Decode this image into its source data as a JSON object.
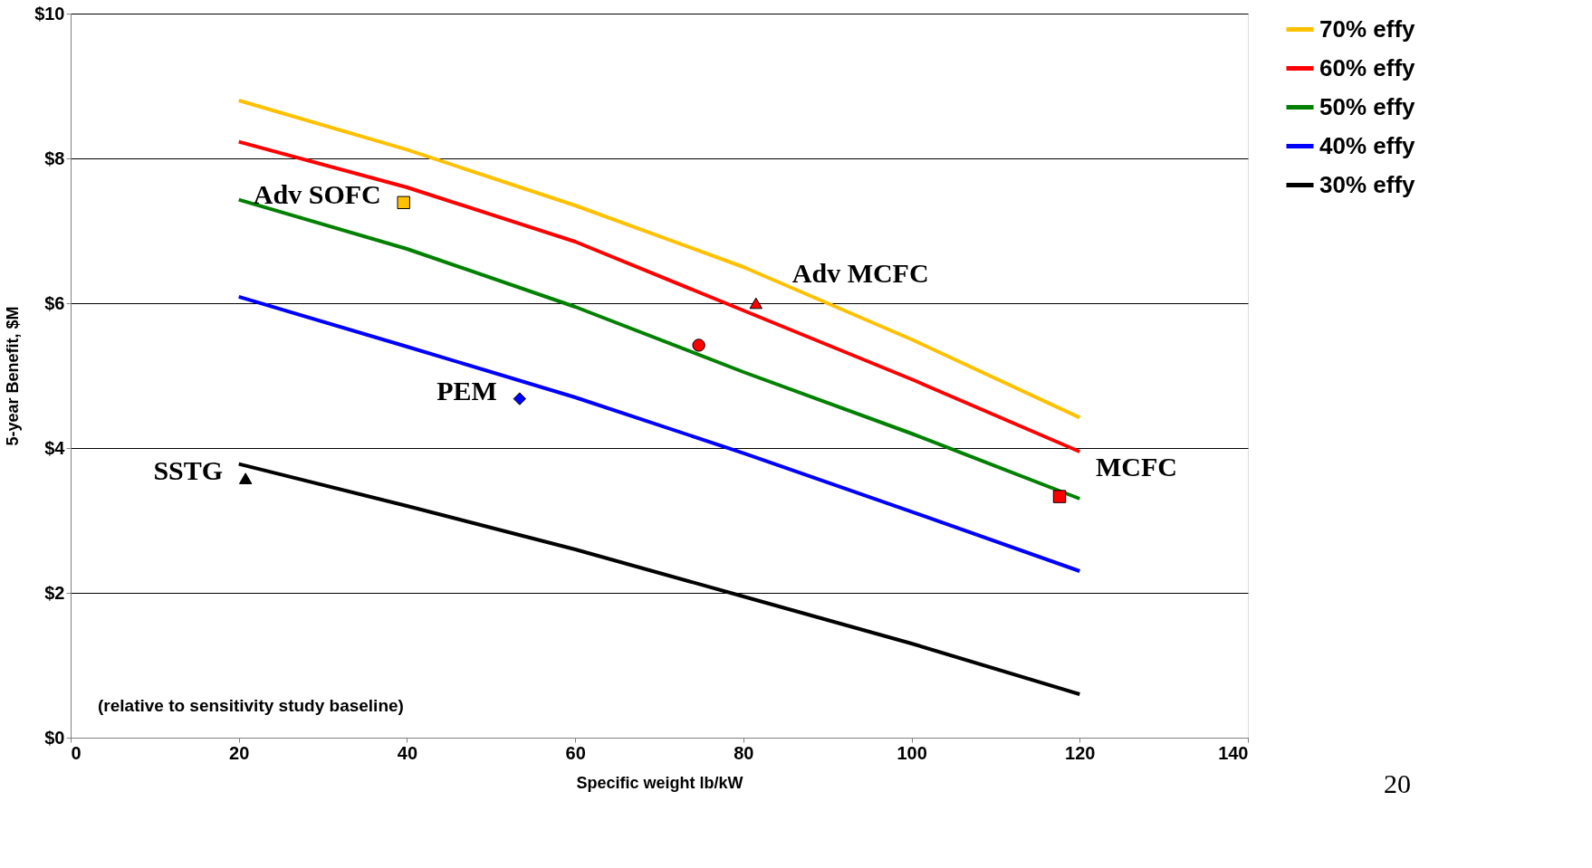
{
  "chart_data": {
    "type": "line",
    "xlabel": "Specific weight lb/kW",
    "ylabel": "5-year Benefit, $M",
    "x": [
      20,
      40,
      60,
      80,
      100,
      120
    ],
    "series": [
      {
        "name": "70% effy",
        "color": "#ffc000",
        "values": [
          8.8,
          8.12,
          7.35,
          6.5,
          5.5,
          4.42
        ]
      },
      {
        "name": "60% effy",
        "color": "#ff0000",
        "values": [
          8.23,
          7.6,
          6.85,
          5.9,
          4.95,
          3.95
        ]
      },
      {
        "name": "50% effy",
        "color": "#008000",
        "values": [
          7.43,
          6.75,
          5.95,
          5.05,
          4.2,
          3.3
        ]
      },
      {
        "name": "40% effy",
        "color": "#0000ff",
        "values": [
          6.09,
          5.4,
          4.7,
          3.93,
          3.12,
          2.3
        ]
      },
      {
        "name": "30% effy",
        "color": "#000000",
        "values": [
          3.78,
          3.2,
          2.6,
          1.95,
          1.3,
          0.6
        ]
      },
      {
        "type": "scatter",
        "marker": "square",
        "x": [
          39.6,
          117.6
        ],
        "values": [
          7.39,
          3.33
        ],
        "colors": [
          "#ffc000",
          "#ff0000"
        ]
      },
      {
        "type": "scatter",
        "marker": "triangle",
        "x": [
          81.5,
          20.8
        ],
        "values": [
          6.0,
          3.58
        ],
        "colors": [
          "#ff0000",
          "#000000"
        ]
      },
      {
        "type": "scatter",
        "marker": "circle",
        "x": [
          74.7
        ],
        "values": [
          5.42
        ],
        "colors": [
          "#ff0000"
        ]
      },
      {
        "type": "scatter",
        "marker": "diamond",
        "x": [
          53.4
        ],
        "values": [
          4.68
        ],
        "colors": [
          "#0000ff"
        ]
      }
    ],
    "xlim": [
      0,
      140
    ],
    "xticks": [
      0,
      20,
      40,
      60,
      80,
      100,
      120,
      140
    ],
    "ylim": [
      0,
      10
    ],
    "yticks": [
      {
        "value": 0,
        "label": "$0"
      },
      {
        "value": 2,
        "label": "$2"
      },
      {
        "value": 4,
        "label": "$4"
      },
      {
        "value": 6,
        "label": "$6"
      },
      {
        "value": 8,
        "label": "$8"
      },
      {
        "value": 10,
        "label": "$10"
      }
    ],
    "grid": "y",
    "legend": "right",
    "marker": "none",
    "line_style": "solid",
    "annotations": [
      {
        "text": "Adv SOFC",
        "x": 39.6,
        "y": 7.39
      },
      {
        "text": "Adv MCFC",
        "x": 81.5,
        "y": 6.0
      },
      {
        "text": "PEM",
        "x": 53.4,
        "y": 4.68
      },
      {
        "text": "SSTG",
        "x": 20.8,
        "y": 3.58
      },
      {
        "text": "MCFC",
        "x": 117.6,
        "y": 3.33
      },
      "(relative to sensitivity study baseline)",
      "20"
    ]
  }
}
